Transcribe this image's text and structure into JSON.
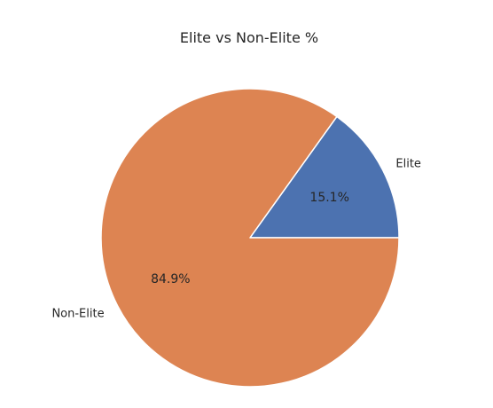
{
  "chart_data": {
    "type": "pie",
    "title": "Elite vs Non-Elite %",
    "slices": [
      {
        "label": "Elite",
        "value": 15.1,
        "pct_label": "15.1%",
        "color": "#4c72b0"
      },
      {
        "label": "Non-Elite",
        "value": 84.9,
        "pct_label": "84.9%",
        "color": "#dd8452"
      }
    ],
    "start_angle_deg": 0,
    "direction": "counterclockwise",
    "legend": false
  }
}
